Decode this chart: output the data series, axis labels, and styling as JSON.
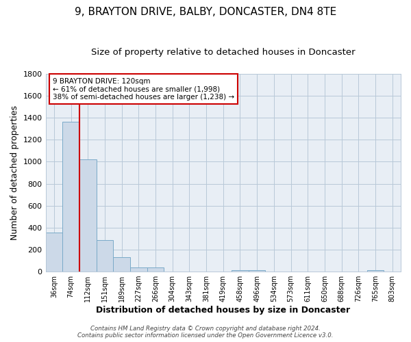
{
  "title": "9, BRAYTON DRIVE, BALBY, DONCASTER, DN4 8TE",
  "subtitle": "Size of property relative to detached houses in Doncaster",
  "xlabel": "Distribution of detached houses by size in Doncaster",
  "ylabel": "Number of detached properties",
  "bar_labels": [
    "36sqm",
    "74sqm",
    "112sqm",
    "151sqm",
    "189sqm",
    "227sqm",
    "266sqm",
    "304sqm",
    "343sqm",
    "381sqm",
    "419sqm",
    "458sqm",
    "496sqm",
    "534sqm",
    "573sqm",
    "611sqm",
    "650sqm",
    "688sqm",
    "726sqm",
    "765sqm",
    "803sqm"
  ],
  "bar_values": [
    355,
    1360,
    1020,
    285,
    130,
    40,
    35,
    0,
    0,
    0,
    0,
    15,
    15,
    0,
    0,
    0,
    0,
    0,
    0,
    15,
    0
  ],
  "bar_color": "#ccd9e8",
  "bar_edge_color": "#7aaac8",
  "vline_x": 1.5,
  "vline_color": "#cc0000",
  "ylim": [
    0,
    1800
  ],
  "yticks": [
    0,
    200,
    400,
    600,
    800,
    1000,
    1200,
    1400,
    1600,
    1800
  ],
  "annotation_text": "9 BRAYTON DRIVE: 120sqm\n← 61% of detached houses are smaller (1,998)\n38% of semi-detached houses are larger (1,238) →",
  "annotation_box_color": "#ffffff",
  "annotation_box_edge": "#cc0000",
  "footer_text": "Contains HM Land Registry data © Crown copyright and database right 2024.\nContains public sector information licensed under the Open Government Licence v3.0.",
  "plot_bg_color": "#e8eef5",
  "fig_bg_color": "#ffffff",
  "grid_color": "#b8c8d8",
  "title_fontsize": 11,
  "subtitle_fontsize": 9.5,
  "xlabel_fontsize": 9,
  "ylabel_fontsize": 9
}
